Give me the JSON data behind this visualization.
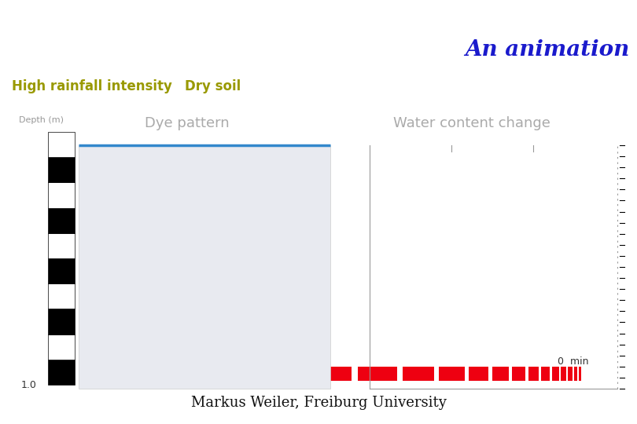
{
  "title": "An animation",
  "title_color": "#1a1acc",
  "title_fontsize": 20,
  "background_color": "#ffffff",
  "high_rainfall_label": "High rainfall intensity",
  "dry_soil_label": "Dry soil",
  "label_color": "#999900",
  "label_fontsize": 12,
  "depth_label": "Depth (m)",
  "depth_label_color": "#999999",
  "depth_label_fontsize": 8,
  "dye_pattern_label": "Dye pattern",
  "dye_pattern_color": "#aaaaaa",
  "dye_pattern_fontsize": 13,
  "water_content_label": "Water content change",
  "water_content_color": "#aaaaaa",
  "water_content_fontsize": 13,
  "dye_box_color": "#e8eaf0",
  "water_line_color": "#3388cc",
  "water_line_lw": 2.5,
  "right_panel_border_color": "#999999",
  "time_label": "0  min",
  "time_label_color": "#333333",
  "time_label_fontsize": 9,
  "footer_label": "Markus Weiler, Freiburg University",
  "footer_fontsize": 13,
  "footer_color": "#111111",
  "red_bar_color": "#ee0011",
  "depth_value_label": "1.0",
  "depth_value_color": "#333333",
  "depth_value_fontsize": 9
}
